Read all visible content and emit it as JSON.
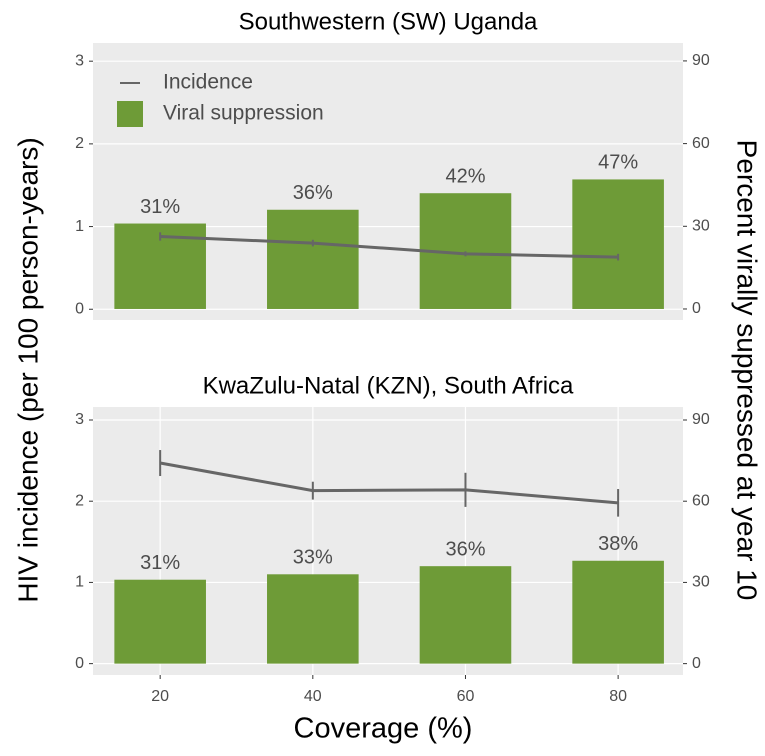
{
  "chart_data": [
    {
      "type": "bar_line",
      "title": "Southwestern (SW) Uganda",
      "x": [
        20,
        40,
        60,
        80
      ],
      "xlim": [
        11.2,
        88.5
      ],
      "ylim": [
        -0.13,
        3.22
      ],
      "yticks": [
        0,
        1,
        2,
        3
      ],
      "y2lim": [
        -4,
        96.5
      ],
      "y2ticks": [
        0,
        30,
        60,
        90
      ],
      "grid": true,
      "legend": "top-left",
      "series": [
        {
          "name": "Incidence",
          "type": "line",
          "color": "#666666",
          "values": [
            0.88,
            0.8,
            0.67,
            0.63
          ],
          "errors": [
            0.05,
            0.04,
            0.03,
            0.04
          ]
        },
        {
          "name": "Viral suppression",
          "type": "bar",
          "axis": "y2",
          "color": "#6e9b37",
          "values": [
            31,
            36,
            42,
            47
          ],
          "value_labels": [
            "31%",
            "36%",
            "42%",
            "47%"
          ]
        }
      ]
    },
    {
      "type": "bar_line",
      "title": "KwaZulu-Natal (KZN), South Africa",
      "x": [
        20,
        40,
        60,
        80
      ],
      "xlim": [
        11.2,
        88.5
      ],
      "xticks": [
        20,
        40,
        60,
        80
      ],
      "ylim": [
        -0.14,
        3.16
      ],
      "yticks": [
        0,
        1,
        2,
        3
      ],
      "y2lim": [
        -4.2,
        94.8
      ],
      "y2ticks": [
        0,
        30,
        60,
        90
      ],
      "grid": true,
      "series": [
        {
          "type": "line",
          "color": "#666666",
          "values": [
            2.47,
            2.13,
            2.14,
            1.98
          ],
          "errors": [
            0.16,
            0.11,
            0.21,
            0.17
          ]
        },
        {
          "type": "bar",
          "axis": "y2",
          "color": "#6e9b37",
          "values": [
            31,
            33,
            36,
            38
          ],
          "value_labels": [
            "31%",
            "33%",
            "36%",
            "38%"
          ]
        }
      ]
    }
  ],
  "xlabel": "Coverage (%)",
  "ylabel": "HIV incidence (per 100 person-years)",
  "y2label": "Percent virally suppressed at year 10"
}
